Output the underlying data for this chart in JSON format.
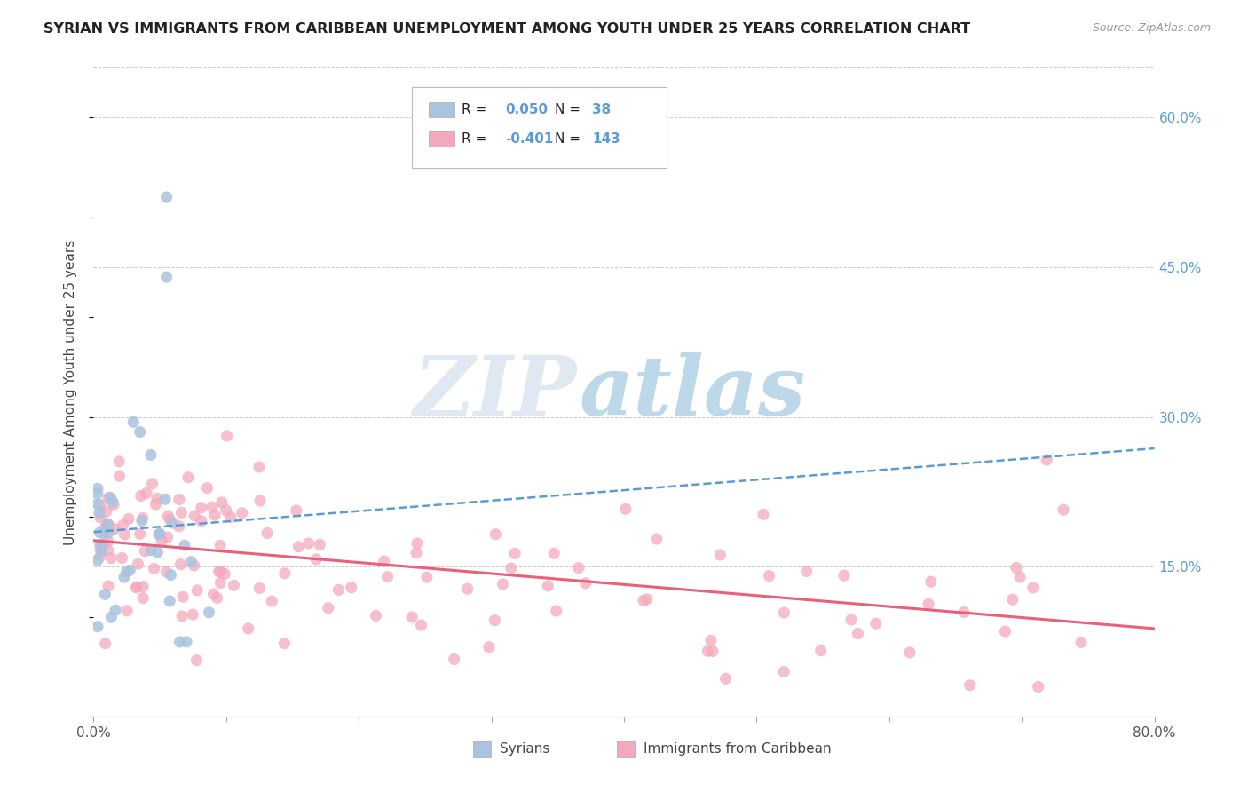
{
  "title": "SYRIAN VS IMMIGRANTS FROM CARIBBEAN UNEMPLOYMENT AMONG YOUTH UNDER 25 YEARS CORRELATION CHART",
  "source": "Source: ZipAtlas.com",
  "ylabel": "Unemployment Among Youth under 25 years",
  "xlim": [
    0.0,
    0.8
  ],
  "ylim": [
    0.0,
    0.65
  ],
  "xtick_positions": [
    0.0,
    0.1,
    0.2,
    0.3,
    0.4,
    0.5,
    0.6,
    0.7,
    0.8
  ],
  "xtick_labels": [
    "0.0%",
    "",
    "",
    "",
    "",
    "",
    "",
    "",
    "80.0%"
  ],
  "yticks_right": [
    0.15,
    0.3,
    0.45,
    0.6
  ],
  "ytick_labels_right": [
    "15.0%",
    "30.0%",
    "45.0%",
    "60.0%"
  ],
  "syrian_R": 0.05,
  "syrian_N": 38,
  "caribbean_R": -0.401,
  "caribbean_N": 143,
  "syrian_color": "#aac4e0",
  "caribbean_color": "#f5a8bc",
  "trend_syrian_color": "#5b9bd5",
  "trend_caribbean_color": "#e8607a",
  "background_color": "#ffffff",
  "grid_color": "#cccccc",
  "watermark_zip_color": "#c8d8e8",
  "watermark_atlas_color": "#7fb0d8"
}
